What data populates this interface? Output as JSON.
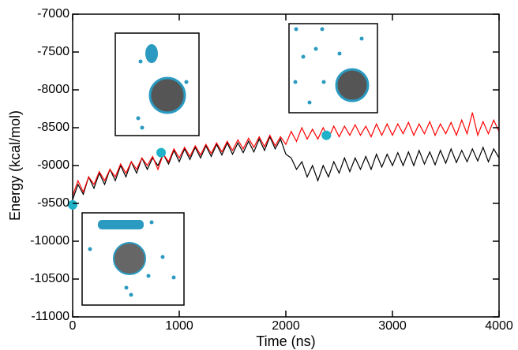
{
  "chart_data": {
    "type": "line",
    "x_label": "Time (ns)",
    "y_label": "Energy (kcal/mol)",
    "xlim": [
      0,
      4000
    ],
    "xticks": [
      0,
      1000,
      2000,
      3000,
      4000
    ],
    "ylim": [
      -11000,
      -7000
    ],
    "yticks": [
      -11000,
      -10500,
      -10000,
      -9500,
      -9000,
      -8500,
      -8000,
      -7500,
      -7000
    ],
    "x": [
      0,
      50,
      100,
      150,
      200,
      250,
      300,
      350,
      400,
      450,
      500,
      550,
      600,
      650,
      700,
      750,
      800,
      850,
      900,
      950,
      1000,
      1050,
      1100,
      1150,
      1200,
      1250,
      1300,
      1350,
      1400,
      1450,
      1500,
      1550,
      1600,
      1650,
      1700,
      1750,
      1800,
      1850,
      1900,
      1950,
      2000,
      2050,
      2100,
      2150,
      2200,
      2250,
      2300,
      2350,
      2400,
      2450,
      2500,
      2550,
      2600,
      2650,
      2700,
      2750,
      2800,
      2850,
      2900,
      2950,
      3000,
      3050,
      3100,
      3150,
      3200,
      3250,
      3300,
      3350,
      3400,
      3450,
      3500,
      3550,
      3600,
      3650,
      3700,
      3750,
      3800,
      3850,
      3900,
      3950,
      4000
    ],
    "series": [
      {
        "color": "#000000",
        "values": [
          -9450,
          -9250,
          -9380,
          -9150,
          -9300,
          -9100,
          -9250,
          -9050,
          -9200,
          -9000,
          -9150,
          -8950,
          -9100,
          -8900,
          -9050,
          -8900,
          -9000,
          -8850,
          -8980,
          -8800,
          -8950,
          -8780,
          -8920,
          -8760,
          -8900,
          -8740,
          -8880,
          -8720,
          -8860,
          -8700,
          -8850,
          -8700,
          -8830,
          -8680,
          -8820,
          -8650,
          -8800,
          -8620,
          -8780,
          -8650,
          -8850,
          -8900,
          -9050,
          -8950,
          -9150,
          -9000,
          -9200,
          -9000,
          -9150,
          -8950,
          -9100,
          -8900,
          -9080,
          -8900,
          -9050,
          -8880,
          -9050,
          -8850,
          -9020,
          -8850,
          -9000,
          -8830,
          -9000,
          -8820,
          -9000,
          -8800,
          -8980,
          -8820,
          -8990,
          -8800,
          -8970,
          -8780,
          -8960,
          -8800,
          -8950,
          -8780,
          -8940,
          -8760,
          -8950,
          -8780,
          -8900
        ]
      },
      {
        "color": "#ff0000",
        "values": [
          -9400,
          -9200,
          -9350,
          -9150,
          -9250,
          -9080,
          -9200,
          -9050,
          -9150,
          -8980,
          -9100,
          -8950,
          -9050,
          -8900,
          -9000,
          -8880,
          -9050,
          -8850,
          -8950,
          -8780,
          -8900,
          -8760,
          -8880,
          -8740,
          -8860,
          -8720,
          -8840,
          -8700,
          -8820,
          -8680,
          -8800,
          -8660,
          -8780,
          -8640,
          -8760,
          -8620,
          -8750,
          -8600,
          -8740,
          -8620,
          -8720,
          -8550,
          -8680,
          -8500,
          -8650,
          -8520,
          -8650,
          -8500,
          -8640,
          -8480,
          -8620,
          -8480,
          -8600,
          -8460,
          -8600,
          -8480,
          -8620,
          -8450,
          -8600,
          -8450,
          -8600,
          -8450,
          -8580,
          -8430,
          -8600,
          -8450,
          -8580,
          -8420,
          -8600,
          -8450,
          -8580,
          -8430,
          -8600,
          -8400,
          -8580,
          -8300,
          -8600,
          -8420,
          -8580,
          -8400,
          -8550
        ]
      }
    ],
    "markers": {
      "color": "#20b2c8",
      "x": [
        0,
        830,
        2380
      ],
      "values": [
        -9520,
        -8830,
        -8600
      ]
    }
  }
}
